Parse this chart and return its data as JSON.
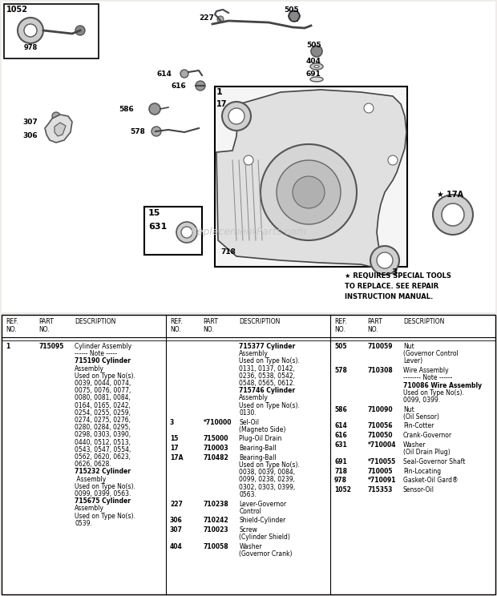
{
  "bg_color": "#f0ede8",
  "diagram_bg": "#ffffff",
  "watermark": "ReplacementParts.com",
  "special_note": "* REQUIRES SPECIAL TOOLS\nTO REPLACE. SEE REPAIR\nINSTRUCTION MANUAL.",
  "col1_parts": [
    {
      "ref": "1",
      "part": "715095",
      "lines": [
        {
          "t": "Cylinder Assembly",
          "b": false
        },
        {
          "t": "------ Note -----",
          "b": false
        },
        {
          "t": "715190 Cylinder",
          "b": true
        },
        {
          "t": "Assembly",
          "b": false
        },
        {
          "t": "Used on Type No(s).",
          "b": false
        },
        {
          "t": "0039, 0044, 0074,",
          "b": false
        },
        {
          "t": "0075, 0076, 0077,",
          "b": false
        },
        {
          "t": "0080, 0081, 0084,",
          "b": false
        },
        {
          "t": "0164, 0165, 0242,",
          "b": false
        },
        {
          "t": "0254, 0255, 0259,",
          "b": false
        },
        {
          "t": "0274, 0275, 0276,",
          "b": false
        },
        {
          "t": "0280, 0284, 0295,",
          "b": false
        },
        {
          "t": "0298, 0303, 0390,",
          "b": false
        },
        {
          "t": "0440, 0512, 0513,",
          "b": false
        },
        {
          "t": "0543, 0547, 0554,",
          "b": false
        },
        {
          "t": "0562, 0620, 0623,",
          "b": false
        },
        {
          "t": "0626, 0628.",
          "b": false
        },
        {
          "t": "715232 Cylinder",
          "b": true
        },
        {
          "t": " Assembly",
          "b": false
        },
        {
          "t": "Used on Type No(s).",
          "b": false
        },
        {
          "t": "0099, 0399, 0563.",
          "b": false
        },
        {
          "t": "715675 Cylinder",
          "b": true
        },
        {
          "t": "Assembly",
          "b": false
        },
        {
          "t": "Used on Type No(s).",
          "b": false
        },
        {
          "t": "0539.",
          "b": false
        }
      ]
    }
  ],
  "col2_parts": [
    {
      "ref": "",
      "part": "",
      "lines": [
        {
          "t": "715377 Cylinder",
          "b": true
        },
        {
          "t": "Assembly",
          "b": false
        },
        {
          "t": "Used on Type No(s).",
          "b": false
        },
        {
          "t": "0131, 0137, 0142,",
          "b": false
        },
        {
          "t": "0236, 0538, 0542,",
          "b": false
        },
        {
          "t": "0548, 0565, 0612.",
          "b": false
        },
        {
          "t": "715746 Cylinder",
          "b": true
        },
        {
          "t": "Assembly",
          "b": false
        },
        {
          "t": "Used on Type No(s).",
          "b": false
        },
        {
          "t": "0130.",
          "b": false
        }
      ]
    },
    {
      "ref": "3",
      "part": "*710000",
      "lines": [
        {
          "t": "Sel-Oil",
          "b": false
        },
        {
          "t": "(Magneto Side)",
          "b": false
        }
      ]
    },
    {
      "ref": "15",
      "part": "715000",
      "lines": [
        {
          "t": "Plug-Oil Drain",
          "b": false
        }
      ]
    },
    {
      "ref": "17",
      "part": "710003",
      "lines": [
        {
          "t": "Bearing-Ball",
          "b": false
        }
      ]
    },
    {
      "ref": "17A",
      "part": "710482",
      "lines": [
        {
          "t": "Bearing-Ball",
          "b": false
        },
        {
          "t": "Used on Type No(s).",
          "b": false
        },
        {
          "t": "0038, 0039, 0084,",
          "b": false
        },
        {
          "t": "0099, 0238, 0239,",
          "b": false
        },
        {
          "t": "0302, 0303, 0399,",
          "b": false
        },
        {
          "t": "0563.",
          "b": false
        }
      ]
    },
    {
      "ref": "227",
      "part": "710238",
      "lines": [
        {
          "t": "Lever-Governor",
          "b": false
        },
        {
          "t": "Control",
          "b": false
        }
      ]
    },
    {
      "ref": "306",
      "part": "710242",
      "lines": [
        {
          "t": "Shield-Cylinder",
          "b": false
        }
      ]
    },
    {
      "ref": "307",
      "part": "710023",
      "lines": [
        {
          "t": "Screw",
          "b": false
        },
        {
          "t": "(Cylinder Shield)",
          "b": false
        }
      ]
    },
    {
      "ref": "404",
      "part": "710058",
      "lines": [
        {
          "t": "Washer",
          "b": false
        },
        {
          "t": "(Governor Crank)",
          "b": false
        }
      ]
    }
  ],
  "col3_parts": [
    {
      "ref": "505",
      "part": "710059",
      "lines": [
        {
          "t": "Nut",
          "b": false
        },
        {
          "t": "(Governor Control",
          "b": false
        },
        {
          "t": "Lever)",
          "b": false
        }
      ]
    },
    {
      "ref": "578",
      "part": "710308",
      "lines": [
        {
          "t": "Wire Assembly",
          "b": false
        },
        {
          "t": "-------- Note ------",
          "b": false
        },
        {
          "t": "710086 Wire Assembly",
          "b": true
        },
        {
          "t": "Used on Type No(s).",
          "b": false
        },
        {
          "t": "0099, 0399.",
          "b": false
        }
      ]
    },
    {
      "ref": "586",
      "part": "710090",
      "lines": [
        {
          "t": "Nut",
          "b": false
        },
        {
          "t": "(Oil Sensor)",
          "b": false
        }
      ]
    },
    {
      "ref": "614",
      "part": "710056",
      "lines": [
        {
          "t": "Pin-Cotter",
          "b": false
        }
      ]
    },
    {
      "ref": "616",
      "part": "710050",
      "lines": [
        {
          "t": "Crank-Governor",
          "b": false
        }
      ]
    },
    {
      "ref": "631",
      "part": "*710004",
      "lines": [
        {
          "t": "Washer",
          "b": false
        },
        {
          "t": "(Oil Drain Plug)",
          "b": false
        }
      ]
    },
    {
      "ref": "691",
      "part": "*710055",
      "lines": [
        {
          "t": "Seal-Governor Shaft",
          "b": false
        }
      ]
    },
    {
      "ref": "718",
      "part": "710005",
      "lines": [
        {
          "t": "Pin-Locating",
          "b": false
        }
      ]
    },
    {
      "ref": "978",
      "part": "*710091",
      "lines": [
        {
          "t": "Gasket-Oil Gard®",
          "b": false
        }
      ]
    },
    {
      "ref": "1052",
      "part": "715353",
      "lines": [
        {
          "t": "Sensor-Oil",
          "b": false
        }
      ]
    }
  ]
}
